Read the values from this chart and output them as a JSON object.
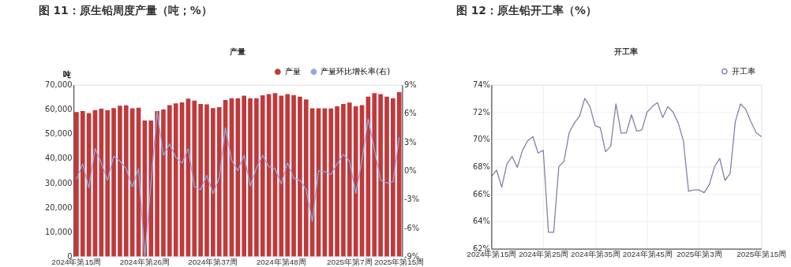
{
  "chart_data": [
    {
      "type": "bar",
      "title": "图 11：原生铅周度产量（吨；%）",
      "subtitle": "产量",
      "ylabel": "吨",
      "categories": [
        "2024年第15周",
        null,
        null,
        null,
        null,
        null,
        null,
        null,
        null,
        null,
        null,
        "2024年第26周",
        null,
        null,
        null,
        null,
        null,
        null,
        null,
        null,
        null,
        null,
        "2024年第37周",
        null,
        null,
        null,
        null,
        null,
        null,
        null,
        null,
        null,
        null,
        "2024年第48周",
        null,
        null,
        null,
        null,
        null,
        null,
        null,
        null,
        null,
        null,
        "2025年第7周",
        null,
        null,
        null,
        null,
        null,
        null,
        null,
        "2025年第15周"
      ],
      "series": [
        {
          "name": "产量",
          "type": "bar",
          "color": "#c0393b",
          "values": [
            58900,
            59300,
            58400,
            59700,
            60200,
            59600,
            60500,
            61400,
            61600,
            60400,
            60600,
            55400,
            55400,
            59300,
            59900,
            61700,
            62400,
            62800,
            64300,
            63500,
            62200,
            62000,
            60500,
            60900,
            63800,
            64500,
            64500,
            65500,
            64500,
            64500,
            65700,
            66200,
            66600,
            65500,
            66200,
            65800,
            65100,
            64000,
            60400,
            60400,
            60400,
            60300,
            61200,
            62200,
            62700,
            61200,
            61700,
            65100,
            66600,
            66200,
            65100,
            64500,
            67000
          ]
        },
        {
          "name": "产量环比增长率(右)",
          "type": "line",
          "axis": "y2",
          "color": "#8fa9dc",
          "values": [
            -0.9,
            0.7,
            -1.8,
            2.3,
            0.8,
            -1.0,
            1.5,
            1.0,
            0.2,
            -1.7,
            0.2,
            -9.0,
            -1.3,
            6.2,
            1.6,
            2.8,
            1.4,
            0.8,
            2.3,
            -1.7,
            -2.0,
            -0.5,
            -2.4,
            -0.8,
            4.5,
            1.1,
            0.0,
            1.6,
            -1.6,
            0.3,
            1.6,
            0.4,
            0.2,
            -1.4,
            0.8,
            -0.8,
            -1.0,
            -2.0,
            -5.3,
            0.0,
            -0.1,
            -0.4,
            0.7,
            1.7,
            1.0,
            -2.4,
            1.1,
            5.4,
            2.2,
            -1.0,
            -1.3,
            -1.2,
            3.5
          ]
        }
      ],
      "ylim": [
        0,
        70000
      ],
      "yticks": [
        0,
        {
          "value": 10000,
          "label": "10,000"
        },
        {
          "value": 20000,
          "label": "20,000"
        },
        {
          "value": 30000,
          "label": "30,000"
        },
        {
          "value": 40000,
          "label": "40,000"
        },
        {
          "value": 50000,
          "label": "50,000"
        },
        {
          "value": 60000,
          "label": "60,000"
        },
        {
          "value": 70000,
          "label": "70,000"
        }
      ],
      "y2lim": [
        -9,
        9
      ],
      "y2ticks": [
        {
          "value": -9,
          "label": "-9%"
        },
        {
          "value": -6,
          "label": "-6%"
        },
        {
          "value": -3,
          "label": "-3%"
        },
        {
          "value": 0,
          "label": "0%"
        },
        {
          "value": 3,
          "label": "3%"
        },
        {
          "value": 6,
          "label": "6%"
        },
        {
          "value": 9,
          "label": "9%"
        }
      ],
      "legend": "top right",
      "grid": false
    },
    {
      "type": "line",
      "title": "图 12：原生铅开工率（%）",
      "subtitle": "开工率",
      "categories": [
        "2024年第15周",
        null,
        null,
        null,
        null,
        null,
        null,
        null,
        null,
        null,
        "2024年第25周",
        null,
        null,
        null,
        null,
        null,
        null,
        null,
        null,
        null,
        "2024年第35周",
        null,
        null,
        null,
        null,
        null,
        null,
        null,
        null,
        null,
        "2024年第45周",
        null,
        null,
        null,
        null,
        null,
        null,
        null,
        null,
        null,
        "2025年第3周",
        null,
        null,
        null,
        null,
        null,
        null,
        null,
        null,
        null,
        null,
        null,
        "2025年第15周"
      ],
      "series": [
        {
          "name": "开工率",
          "color": "#8080a8",
          "values": [
            67.25,
            67.75,
            66.5,
            68.2,
            68.75,
            67.95,
            69.2,
            69.9,
            70.2,
            69.0,
            69.2,
            63.2,
            63.2,
            68.0,
            68.4,
            70.5,
            71.2,
            71.7,
            73.0,
            72.4,
            71.0,
            70.85,
            69.1,
            69.5,
            72.6,
            70.47,
            70.47,
            71.8,
            70.6,
            70.7,
            72.0,
            72.4,
            72.7,
            71.6,
            72.4,
            72.0,
            71.2,
            69.9,
            66.2,
            66.3,
            66.3,
            66.1,
            66.7,
            68.0,
            68.6,
            67.0,
            67.5,
            71.3,
            72.6,
            72.2,
            71.3,
            70.5,
            70.2
          ]
        }
      ],
      "ylim": [
        62,
        74
      ],
      "yticks": [
        {
          "value": 62,
          "label": "62%"
        },
        {
          "value": 64,
          "label": "64%"
        },
        {
          "value": 66,
          "label": "66%"
        },
        {
          "value": 68,
          "label": "68%"
        },
        {
          "value": 70,
          "label": "70%"
        },
        {
          "value": 72,
          "label": "72%"
        },
        {
          "value": 74,
          "label": "74%"
        }
      ],
      "legend": "top right",
      "grid": true
    }
  ]
}
